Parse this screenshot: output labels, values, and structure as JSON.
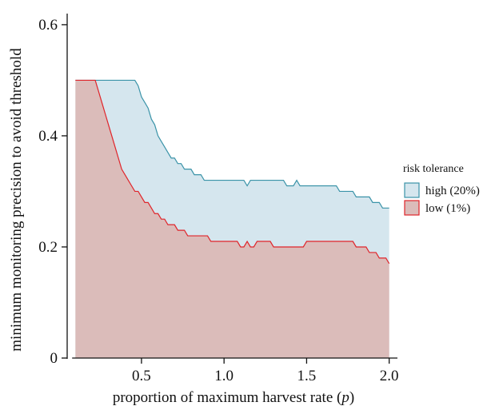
{
  "chart_data": {
    "type": "area",
    "xlabel": "proportion of maximum harvest rate (p)",
    "ylabel": "minimum monitoring precision to avoid threshold",
    "xlim": [
      0.05,
      2.05
    ],
    "ylim": [
      0,
      0.62
    ],
    "xticks": [
      {
        "value": 0.5,
        "label": "0.5"
      },
      {
        "value": 1.0,
        "label": "1.0"
      },
      {
        "value": 1.5,
        "label": "1.5"
      },
      {
        "value": 2.0,
        "label": "2.0"
      }
    ],
    "yticks": [
      {
        "value": 0,
        "label": "0"
      },
      {
        "value": 0.2,
        "label": "0.2"
      },
      {
        "value": 0.4,
        "label": "0.4"
      },
      {
        "value": 0.6,
        "label": "0.6"
      }
    ],
    "legend": {
      "title": "risk tolerance",
      "position": "right"
    },
    "series": [
      {
        "name": "high (20%)",
        "line_color": "#3a93a8",
        "fill_color": "#d5e6ee",
        "x": [
          0.1,
          0.12,
          0.14,
          0.16,
          0.18,
          0.2,
          0.22,
          0.24,
          0.26,
          0.28,
          0.3,
          0.32,
          0.34,
          0.36,
          0.38,
          0.4,
          0.42,
          0.44,
          0.46,
          0.48,
          0.5,
          0.52,
          0.54,
          0.56,
          0.58,
          0.6,
          0.62,
          0.64,
          0.66,
          0.68,
          0.7,
          0.72,
          0.74,
          0.76,
          0.78,
          0.8,
          0.82,
          0.84,
          0.86,
          0.88,
          0.9,
          0.92,
          0.94,
          0.96,
          0.98,
          1.0,
          1.02,
          1.04,
          1.06,
          1.08,
          1.1,
          1.12,
          1.14,
          1.16,
          1.18,
          1.2,
          1.22,
          1.24,
          1.26,
          1.28,
          1.3,
          1.32,
          1.34,
          1.36,
          1.38,
          1.4,
          1.42,
          1.44,
          1.46,
          1.48,
          1.5,
          1.52,
          1.54,
          1.56,
          1.58,
          1.6,
          1.62,
          1.64,
          1.66,
          1.68,
          1.7,
          1.72,
          1.74,
          1.76,
          1.78,
          1.8,
          1.82,
          1.84,
          1.86,
          1.88,
          1.9,
          1.92,
          1.94,
          1.96,
          1.98,
          2.0
        ],
        "y": [
          0.5,
          0.5,
          0.5,
          0.5,
          0.5,
          0.5,
          0.5,
          0.5,
          0.5,
          0.5,
          0.5,
          0.5,
          0.5,
          0.5,
          0.5,
          0.5,
          0.5,
          0.5,
          0.5,
          0.49,
          0.47,
          0.46,
          0.45,
          0.43,
          0.42,
          0.4,
          0.39,
          0.38,
          0.37,
          0.36,
          0.36,
          0.35,
          0.35,
          0.34,
          0.34,
          0.34,
          0.33,
          0.33,
          0.33,
          0.32,
          0.32,
          0.32,
          0.32,
          0.32,
          0.32,
          0.32,
          0.32,
          0.32,
          0.32,
          0.32,
          0.32,
          0.32,
          0.31,
          0.32,
          0.32,
          0.32,
          0.32,
          0.32,
          0.32,
          0.32,
          0.32,
          0.32,
          0.32,
          0.32,
          0.31,
          0.31,
          0.31,
          0.32,
          0.31,
          0.31,
          0.31,
          0.31,
          0.31,
          0.31,
          0.31,
          0.31,
          0.31,
          0.31,
          0.31,
          0.31,
          0.3,
          0.3,
          0.3,
          0.3,
          0.3,
          0.29,
          0.29,
          0.29,
          0.29,
          0.29,
          0.28,
          0.28,
          0.28,
          0.27,
          0.27,
          0.27
        ]
      },
      {
        "name": "low (1%)",
        "line_color": "#e0242a",
        "fill_color": "#dbbcba",
        "x": [
          0.1,
          0.12,
          0.14,
          0.16,
          0.18,
          0.2,
          0.22,
          0.24,
          0.26,
          0.28,
          0.3,
          0.32,
          0.34,
          0.36,
          0.38,
          0.4,
          0.42,
          0.44,
          0.46,
          0.48,
          0.5,
          0.52,
          0.54,
          0.56,
          0.58,
          0.6,
          0.62,
          0.64,
          0.66,
          0.68,
          0.7,
          0.72,
          0.74,
          0.76,
          0.78,
          0.8,
          0.82,
          0.84,
          0.86,
          0.88,
          0.9,
          0.92,
          0.94,
          0.96,
          0.98,
          1.0,
          1.02,
          1.04,
          1.06,
          1.08,
          1.1,
          1.12,
          1.14,
          1.16,
          1.18,
          1.2,
          1.22,
          1.24,
          1.26,
          1.28,
          1.3,
          1.32,
          1.34,
          1.36,
          1.38,
          1.4,
          1.42,
          1.44,
          1.46,
          1.48,
          1.5,
          1.52,
          1.54,
          1.56,
          1.58,
          1.6,
          1.62,
          1.64,
          1.66,
          1.68,
          1.7,
          1.72,
          1.74,
          1.76,
          1.78,
          1.8,
          1.82,
          1.84,
          1.86,
          1.88,
          1.9,
          1.92,
          1.94,
          1.96,
          1.98,
          2.0
        ],
        "y": [
          0.5,
          0.5,
          0.5,
          0.5,
          0.5,
          0.5,
          0.5,
          0.48,
          0.46,
          0.44,
          0.42,
          0.4,
          0.38,
          0.36,
          0.34,
          0.33,
          0.32,
          0.31,
          0.3,
          0.3,
          0.29,
          0.28,
          0.28,
          0.27,
          0.26,
          0.26,
          0.25,
          0.25,
          0.24,
          0.24,
          0.24,
          0.23,
          0.23,
          0.23,
          0.22,
          0.22,
          0.22,
          0.22,
          0.22,
          0.22,
          0.22,
          0.21,
          0.21,
          0.21,
          0.21,
          0.21,
          0.21,
          0.21,
          0.21,
          0.21,
          0.2,
          0.2,
          0.21,
          0.2,
          0.2,
          0.21,
          0.21,
          0.21,
          0.21,
          0.21,
          0.2,
          0.2,
          0.2,
          0.2,
          0.2,
          0.2,
          0.2,
          0.2,
          0.2,
          0.2,
          0.21,
          0.21,
          0.21,
          0.21,
          0.21,
          0.21,
          0.21,
          0.21,
          0.21,
          0.21,
          0.21,
          0.21,
          0.21,
          0.21,
          0.21,
          0.2,
          0.2,
          0.2,
          0.2,
          0.19,
          0.19,
          0.19,
          0.18,
          0.18,
          0.18,
          0.17
        ]
      }
    ]
  }
}
